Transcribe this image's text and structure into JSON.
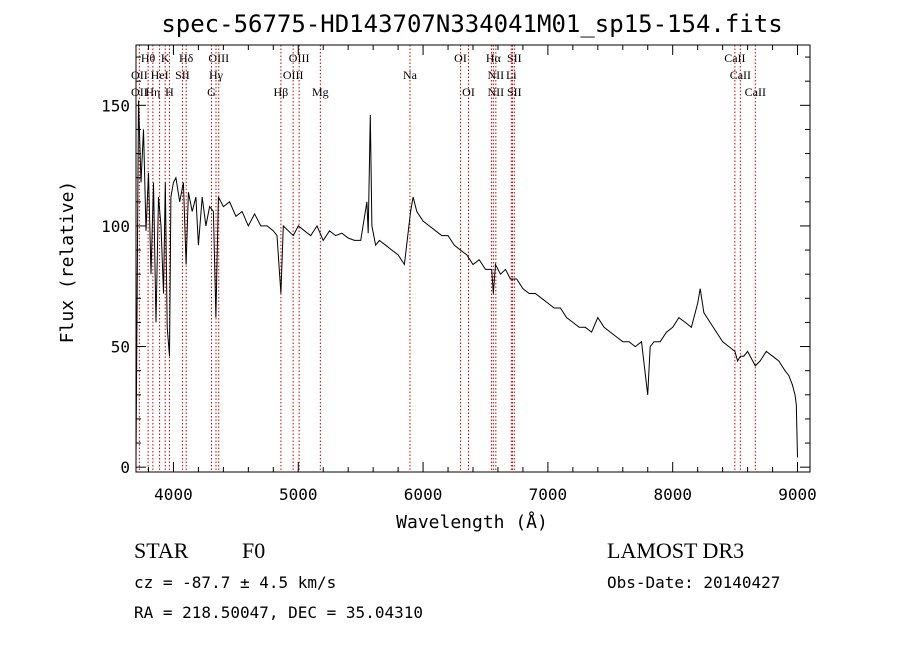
{
  "chart_data": {
    "type": "line",
    "title": "spec-56775-HD143707N334041M01_sp15-154.fits",
    "xlabel": "Wavelength (Å)",
    "ylabel": "Flux (relative)",
    "xlim": [
      3700,
      9100
    ],
    "ylim": [
      -2,
      175
    ],
    "xticks": [
      4000,
      5000,
      6000,
      7000,
      8000,
      9000
    ],
    "yticks": [
      0,
      50,
      100,
      150
    ],
    "grid": false,
    "series": [
      {
        "name": "flux",
        "x": [
          3700,
          3720,
          3740,
          3760,
          3780,
          3800,
          3820,
          3840,
          3860,
          3880,
          3900,
          3920,
          3935,
          3950,
          3968,
          3980,
          4000,
          4020,
          4050,
          4080,
          4101,
          4120,
          4150,
          4180,
          4200,
          4230,
          4260,
          4290,
          4320,
          4340,
          4360,
          4380,
          4400,
          4450,
          4500,
          4550,
          4600,
          4650,
          4700,
          4750,
          4800,
          4830,
          4861,
          4880,
          4920,
          4960,
          5000,
          5050,
          5100,
          5150,
          5200,
          5250,
          5300,
          5350,
          5400,
          5450,
          5500,
          5550,
          5560,
          5577,
          5590,
          5620,
          5650,
          5700,
          5750,
          5800,
          5850,
          5900,
          5920,
          5950,
          6000,
          6050,
          6100,
          6150,
          6200,
          6250,
          6300,
          6350,
          6400,
          6450,
          6500,
          6550,
          6563,
          6580,
          6620,
          6660,
          6700,
          6750,
          6800,
          6850,
          6900,
          6950,
          7000,
          7050,
          7100,
          7150,
          7200,
          7250,
          7300,
          7350,
          7400,
          7450,
          7500,
          7550,
          7600,
          7650,
          7700,
          7750,
          7800,
          7820,
          7850,
          7900,
          7950,
          8000,
          8050,
          8100,
          8150,
          8200,
          8220,
          8250,
          8300,
          8350,
          8400,
          8450,
          8498,
          8520,
          8542,
          8570,
          8600,
          8662,
          8700,
          8750,
          8800,
          8850,
          8900,
          8930,
          8960,
          8980,
          8990,
          9000
        ],
        "y": [
          2,
          152,
          118,
          140,
          98,
          122,
          80,
          118,
          60,
          112,
          100,
          72,
          118,
          58,
          46,
          112,
          118,
          120,
          110,
          118,
          84,
          114,
          106,
          112,
          92,
          112,
          100,
          108,
          106,
          62,
          112,
          110,
          108,
          110,
          104,
          106,
          100,
          105,
          100,
          100,
          98,
          96,
          72,
          100,
          98,
          96,
          100,
          98,
          96,
          100,
          94,
          98,
          96,
          97,
          95,
          94,
          94,
          110,
          97,
          146,
          100,
          92,
          94,
          92,
          90,
          88,
          84,
          106,
          112,
          106,
          102,
          100,
          98,
          96,
          96,
          92,
          90,
          88,
          84,
          86,
          82,
          82,
          72,
          84,
          80,
          82,
          78,
          78,
          74,
          72,
          72,
          70,
          68,
          66,
          66,
          62,
          60,
          58,
          58,
          56,
          62,
          58,
          56,
          54,
          52,
          52,
          50,
          52,
          30,
          50,
          52,
          52,
          56,
          58,
          62,
          60,
          58,
          68,
          74,
          64,
          60,
          56,
          52,
          50,
          48,
          44,
          46,
          46,
          48,
          42,
          44,
          48,
          46,
          44,
          40,
          38,
          34,
          30,
          26,
          4
        ]
      }
    ],
    "lines": [
      {
        "name": "OII",
        "x": 3727
      },
      {
        "name": "Hθ",
        "x": 3797
      },
      {
        "name": "Hη",
        "x": 3835
      },
      {
        "name": "HeI",
        "x": 3889
      },
      {
        "name": "K",
        "x": 3934
      },
      {
        "name": "H",
        "x": 3968
      },
      {
        "name": "SII",
        "x": 4072
      },
      {
        "name": "Hδ",
        "x": 4102
      },
      {
        "name": "G",
        "x": 4305
      },
      {
        "name": "Hγ",
        "x": 4341
      },
      {
        "name": "OIII",
        "x": 4363
      },
      {
        "name": "Hβ",
        "x": 4861
      },
      {
        "name": "OIII",
        "x": 4959
      },
      {
        "name": "OIII",
        "x": 5007
      },
      {
        "name": "Mg",
        "x": 5177
      },
      {
        "name": "Na",
        "x": 5895
      },
      {
        "name": "OI",
        "x": 6300
      },
      {
        "name": "OI",
        "x": 6364
      },
      {
        "name": "NII",
        "x": 6548
      },
      {
        "name": "Hα",
        "x": 6563
      },
      {
        "name": "NII",
        "x": 6583
      },
      {
        "name": "Li",
        "x": 6707
      },
      {
        "name": "SII",
        "x": 6716
      },
      {
        "name": "SII",
        "x": 6731
      },
      {
        "name": "CaII",
        "x": 8498
      },
      {
        "name": "CaII",
        "x": 8542
      },
      {
        "name": "CaII",
        "x": 8662
      }
    ],
    "line_labels": [
      {
        "text": "OII",
        "x": 3727,
        "row": 2
      },
      {
        "text": "OII",
        "x": 3727,
        "row": 3
      },
      {
        "text": "Hθ",
        "x": 3797,
        "row": 1
      },
      {
        "text": "K",
        "x": 3934,
        "row": 1
      },
      {
        "text": "Hδ",
        "x": 4102,
        "row": 1
      },
      {
        "text": "HeI",
        "x": 3889,
        "row": 2
      },
      {
        "text": "SII",
        "x": 4072,
        "row": 2
      },
      {
        "text": "Hη",
        "x": 3835,
        "row": 3
      },
      {
        "text": "H",
        "x": 3968,
        "row": 3
      },
      {
        "text": "OIII",
        "x": 4363,
        "row": 1
      },
      {
        "text": "Hγ",
        "x": 4341,
        "row": 2
      },
      {
        "text": "G",
        "x": 4305,
        "row": 3
      },
      {
        "text": "OIII",
        "x": 5007,
        "row": 1
      },
      {
        "text": "OIII",
        "x": 4959,
        "row": 2
      },
      {
        "text": "Hβ",
        "x": 4861,
        "row": 3
      },
      {
        "text": "Mg",
        "x": 5177,
        "row": 3
      },
      {
        "text": "Na",
        "x": 5895,
        "row": 2
      },
      {
        "text": "OI",
        "x": 6300,
        "row": 1
      },
      {
        "text": "OI",
        "x": 6364,
        "row": 3
      },
      {
        "text": "Hα",
        "x": 6563,
        "row": 1
      },
      {
        "text": "SII",
        "x": 6731,
        "row": 1
      },
      {
        "text": "NII",
        "x": 6583,
        "row": 2
      },
      {
        "text": "Li",
        "x": 6707,
        "row": 2
      },
      {
        "text": "NII",
        "x": 6583,
        "row": 3
      },
      {
        "text": "SII",
        "x": 6731,
        "row": 3
      },
      {
        "text": "CaII",
        "x": 8498,
        "row": 1
      },
      {
        "text": "CaII",
        "x": 8542,
        "row": 2
      },
      {
        "text": "CaII",
        "x": 8662,
        "row": 3
      }
    ],
    "line_color": "#000000",
    "marker_color": "#cc0000"
  },
  "info": {
    "object_class": "STAR",
    "subclass": "F0",
    "survey": "LAMOST DR3",
    "redshift": "cz = -87.7 ± 4.5 km/s",
    "obs_date": "Obs-Date: 20140427",
    "coords": "RA = 218.50047, DEC =  35.04310"
  }
}
